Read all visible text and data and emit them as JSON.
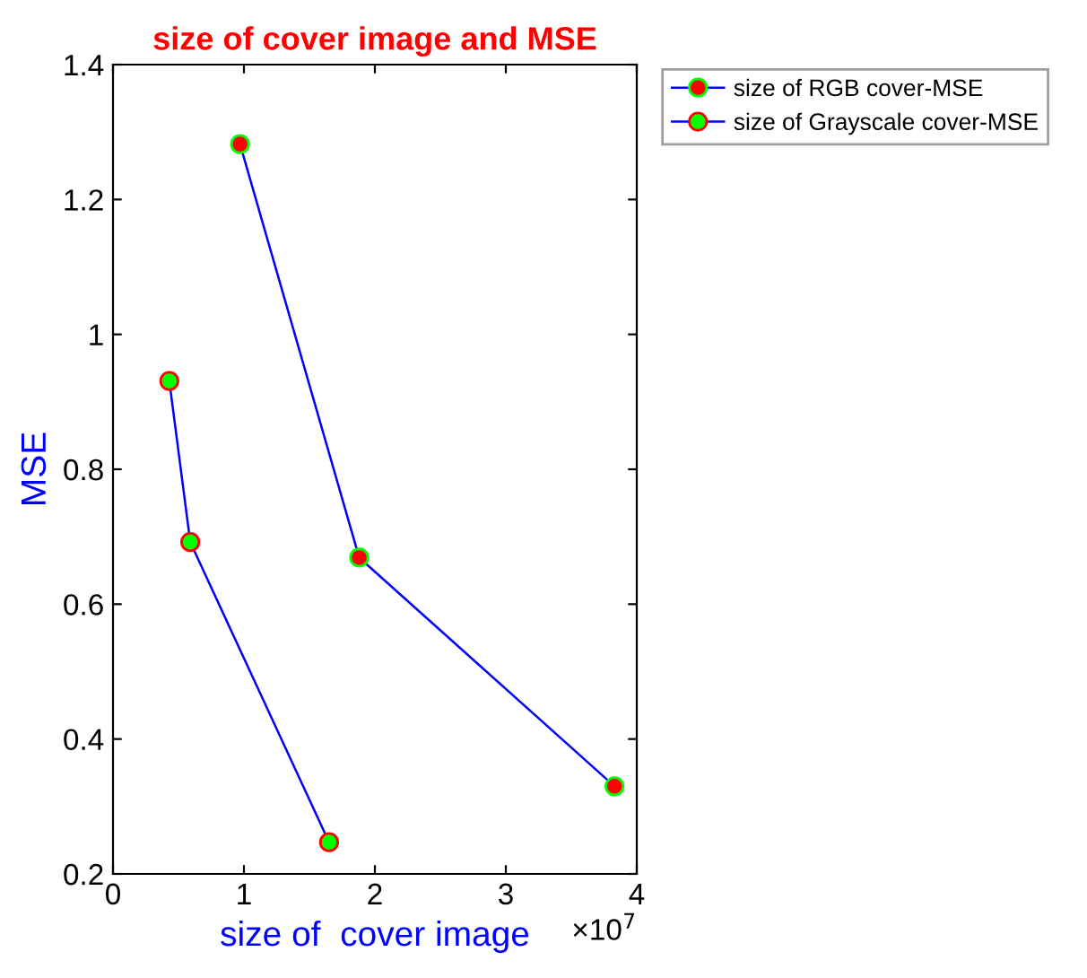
{
  "chart_data": {
    "type": "line",
    "title": "size of cover image and MSE",
    "xlabel": "size of  cover image",
    "ylabel": "MSE",
    "annotations": [
      "×10$^{7}$"
    ],
    "series": [
      {
        "name": "size of RGB cover-MSE",
        "color": "#ff0000",
        "x": [
          0.97,
          1.88,
          3.83
        ],
        "values": [
          1.282,
          0.669,
          0.33
        ]
      },
      {
        "name": "size of Grayscale cover-MSE",
        "color": "#00ff00",
        "x": [
          0.43,
          0.59,
          1.65
        ],
        "values": [
          0.931,
          0.692,
          0.247
        ]
      }
    ],
    "xlim": [
      0,
      4
    ],
    "xticks": [
      0,
      1,
      2,
      3,
      4
    ],
    "ylim": [
      0.2,
      1.4
    ],
    "yticks": [
      0.2,
      0.4,
      0.6,
      0.8,
      1,
      1.2,
      1.4
    ],
    "marker": "circle",
    "line_style": "solid",
    "grid": false,
    "legend": "top right"
  }
}
